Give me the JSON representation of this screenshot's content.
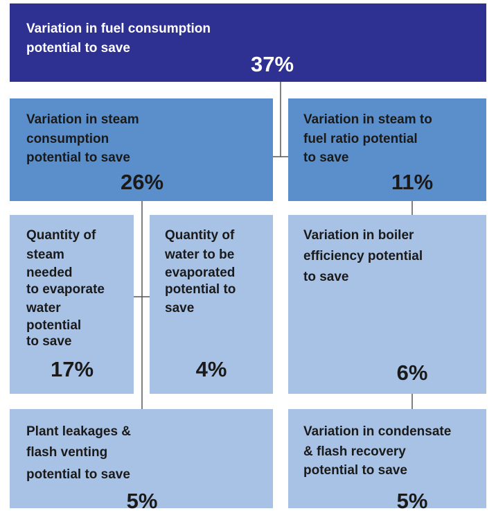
{
  "nodes": [
    {
      "lines": [
        "Variation in fuel consumption",
        "potential to save"
      ],
      "value": "37%"
    },
    {
      "lines": [
        "Variation in steam",
        "consumption",
        "potential to save"
      ],
      "value": "26%"
    },
    {
      "lines": [
        "Variation in steam to",
        "fuel ratio potential",
        "to save"
      ],
      "value": "11%"
    },
    {
      "lines": [
        "Quantity of",
        "steam",
        "needed",
        "to evaporate",
        "water",
        "potential",
        "to save"
      ],
      "value": "17%"
    },
    {
      "lines": [
        "Quantity of",
        "water to be",
        "evaporated",
        "potential to",
        "save"
      ],
      "value": "4%"
    },
    {
      "lines": [
        "Variation in boiler",
        "efficiency potential",
        "to save"
      ],
      "value": "6%"
    },
    {
      "lines": [
        "Plant leakages &",
        "flash venting",
        "potential to save"
      ],
      "value": "5%"
    },
    {
      "lines": [
        "Variation in condensate",
        "& flash recovery",
        "potential to save"
      ],
      "value": "5%"
    }
  ]
}
